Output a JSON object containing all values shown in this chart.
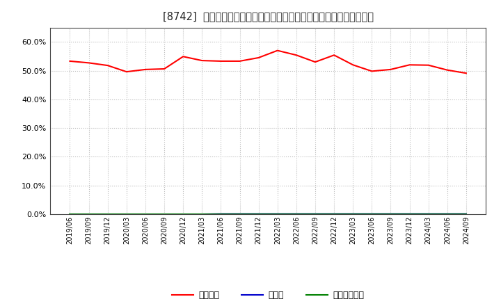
{
  "title": "[8742]  自己資本、のれん、繰延税金資産の総資産に対する比率の推移",
  "x_labels": [
    "2019/06",
    "2019/09",
    "2019/12",
    "2020/03",
    "2020/06",
    "2020/09",
    "2020/12",
    "2021/03",
    "2021/06",
    "2021/09",
    "2021/12",
    "2022/03",
    "2022/06",
    "2022/09",
    "2022/12",
    "2023/03",
    "2023/06",
    "2023/09",
    "2023/12",
    "2024/03",
    "2024/06",
    "2024/09"
  ],
  "equity_ratio": [
    0.533,
    0.527,
    0.518,
    0.496,
    0.504,
    0.506,
    0.549,
    0.535,
    0.533,
    0.533,
    0.545,
    0.57,
    0.554,
    0.53,
    0.554,
    0.52,
    0.498,
    0.504,
    0.52,
    0.519,
    0.502,
    0.491
  ],
  "noren_ratio": [
    0.0,
    0.0,
    0.0,
    0.0,
    0.0,
    0.0,
    0.0,
    0.0,
    0.001,
    0.001,
    0.001,
    0.001,
    0.001,
    0.001,
    0.001,
    0.001,
    0.001,
    0.001,
    0.001,
    0.001,
    0.001,
    0.001
  ],
  "dta_ratio": [
    0.0,
    0.0,
    0.0,
    0.0,
    0.0,
    0.0,
    0.0,
    0.0,
    0.0,
    0.0,
    0.0,
    0.0,
    0.0,
    0.0,
    0.0,
    0.0,
    0.0,
    0.0,
    0.0,
    0.0,
    0.0,
    0.0
  ],
  "equity_color": "#ff0000",
  "noren_color": "#0000cc",
  "dta_color": "#008000",
  "ylim": [
    0.0,
    0.65
  ],
  "yticks": [
    0.0,
    0.1,
    0.2,
    0.3,
    0.4,
    0.5,
    0.6
  ],
  "legend_labels": [
    "自己資本",
    "のれん",
    "繰延税金資産"
  ],
  "bg_color": "#ffffff",
  "plot_bg_color": "#ffffff",
  "grid_color": "#bbbbbb",
  "title_prefix": "[8742]  ",
  "title_jp": "自己資本、のれん、繰延税金資産の総資産に対する比率の推移"
}
